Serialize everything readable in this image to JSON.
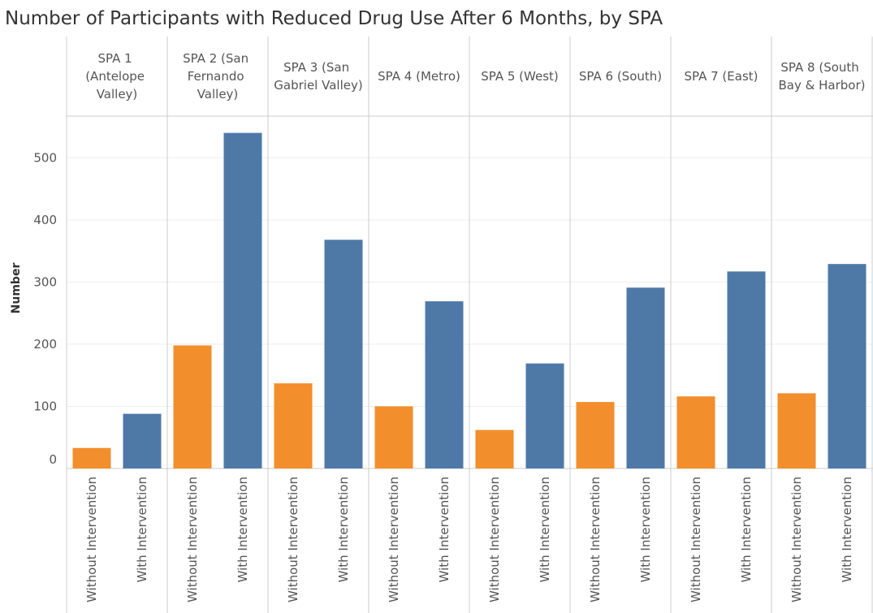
{
  "chart_data": {
    "type": "bar",
    "title": "Number of Participants with Reduced Drug Use After 6 Months, by SPA",
    "y_label": "Number",
    "categories": [
      "SPA 1 (Antelope Valley)",
      "SPA 2 (San Fernando Valley)",
      "SPA 3 (San Gabriel Valley)",
      "SPA 4 (Metro)",
      "SPA 5 (West)",
      "SPA 6 (South)",
      "SPA 7 (East)",
      "SPA 8 (South Bay & Harbor)"
    ],
    "series": [
      {
        "name": "Without Intervention",
        "color": "#f28e2b",
        "values": [
          33,
          198,
          137,
          100,
          62,
          107,
          116,
          121
        ]
      },
      {
        "name": "With Intervention",
        "color": "#4e79a7",
        "values": [
          88,
          540,
          368,
          269,
          169,
          291,
          317,
          329
        ]
      }
    ],
    "ylim": [
      0,
      567
    ],
    "yticks": [
      0,
      100,
      200,
      300,
      400,
      500
    ],
    "grid": true
  }
}
